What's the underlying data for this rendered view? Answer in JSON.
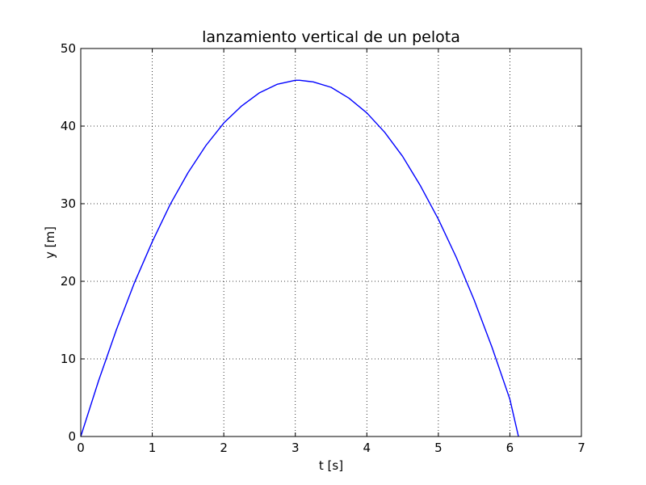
{
  "chart_data": {
    "type": "line",
    "title": "lanzamiento vertical de un pelota",
    "xlabel": "t [s]",
    "ylabel": "y [m]",
    "xlim": [
      0,
      7
    ],
    "ylim": [
      0,
      50
    ],
    "xticks": [
      0,
      1,
      2,
      3,
      4,
      5,
      6,
      7
    ],
    "yticks": [
      0,
      10,
      20,
      30,
      40,
      50
    ],
    "grid": true,
    "legend": "none",
    "series": [
      {
        "color": "#0000ff",
        "x": [
          0,
          0.25,
          0.5,
          0.75,
          1,
          1.25,
          1.5,
          1.75,
          2,
          2.25,
          2.5,
          2.75,
          3,
          3.06,
          3.25,
          3.5,
          3.75,
          4,
          4.25,
          4.5,
          4.75,
          5,
          5.25,
          5.5,
          5.75,
          6,
          6.12
        ],
        "y": [
          0,
          7.2,
          13.8,
          19.8,
          25.1,
          29.9,
          34.0,
          37.5,
          40.4,
          42.6,
          44.3,
          45.4,
          45.9,
          45.9,
          45.7,
          45.0,
          43.6,
          41.7,
          39.2,
          36.1,
          32.3,
          28.0,
          23.1,
          17.6,
          11.5,
          4.8,
          0
        ]
      }
    ]
  }
}
